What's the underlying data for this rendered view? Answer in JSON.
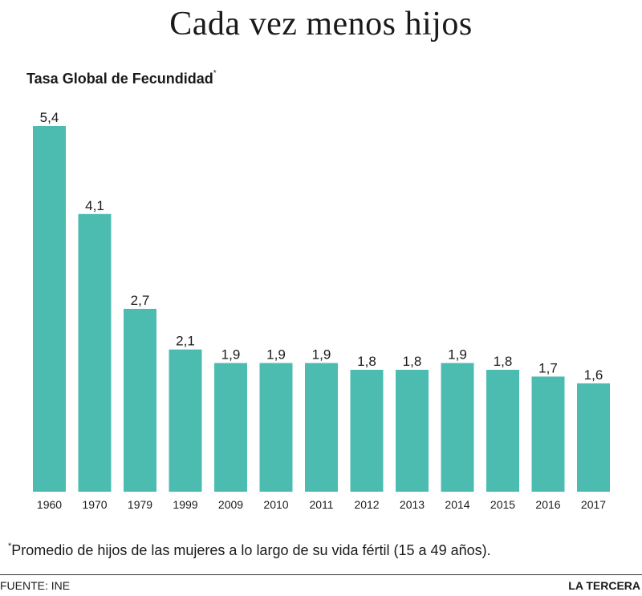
{
  "header": {
    "title": "Cada vez menos hijos",
    "subtitle": "Tasa Global de Fecundidad",
    "subtitle_mark": "*"
  },
  "footer": {
    "note_mark": "*",
    "note": "Promedio de hijos de las mujeres a lo largo de su vida fértil (15 a 49 años).",
    "source": "FUENTE: INE",
    "brand": "LA TERCERA"
  },
  "colors": {
    "bar": "#4cbcb0",
    "text": "#1a1a1a"
  },
  "chart_data": {
    "type": "bar",
    "title": "Tasa Global de Fecundidad",
    "categories": [
      "1960",
      "1970",
      "1979",
      "1999",
      "2009",
      "2010",
      "2011",
      "2012",
      "2013",
      "2014",
      "2015",
      "2016",
      "2017"
    ],
    "values": [
      5.4,
      4.1,
      2.7,
      2.1,
      1.9,
      1.9,
      1.9,
      1.8,
      1.8,
      1.9,
      1.8,
      1.7,
      1.6
    ],
    "value_labels": [
      "5,4",
      "4,1",
      "2,7",
      "2,1",
      "1,9",
      "1,9",
      "1,9",
      "1,8",
      "1,8",
      "1,9",
      "1,8",
      "1,7",
      "1,6"
    ],
    "ylim": [
      0,
      5.4
    ],
    "grid": false,
    "legend": "none"
  }
}
